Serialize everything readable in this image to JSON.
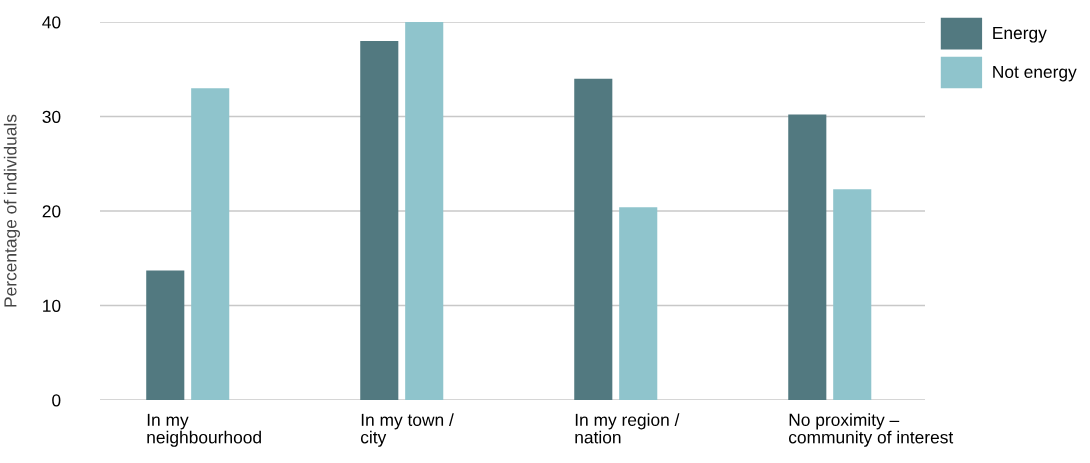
{
  "chart_data": {
    "type": "bar",
    "ylabel": "Percentage of individuals",
    "categories": [
      "In my\nneighbourhood",
      "In my town /\ncity",
      "In my region /\nnation",
      "No proximity –\ncommunity of interest"
    ],
    "series": [
      {
        "name": "Energy",
        "color": "#527980",
        "values": [
          13.7,
          38.0,
          34.0,
          30.2
        ]
      },
      {
        "name": "Not energy",
        "color": "#8fc4cc",
        "values": [
          33.0,
          40.0,
          20.4,
          22.3
        ]
      }
    ],
    "ylim": [
      0,
      40
    ],
    "yticks": [
      0,
      10,
      20,
      30,
      40
    ],
    "grid": "y",
    "legend": "top right"
  }
}
